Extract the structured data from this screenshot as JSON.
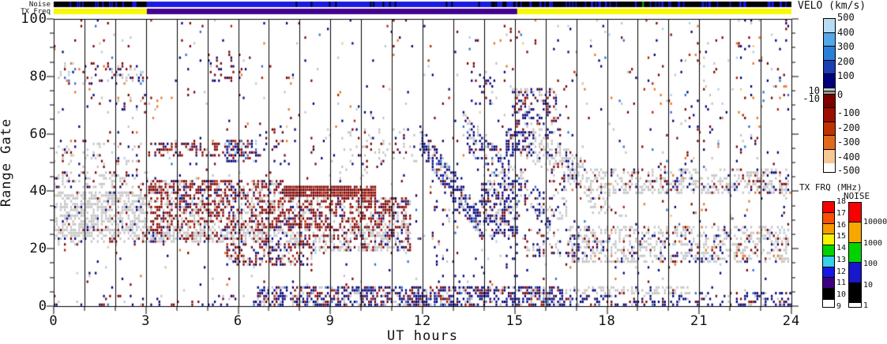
{
  "plot": {
    "x_axis": {
      "label": "UT hours",
      "tick_labels": [
        "0",
        "3",
        "6",
        "9",
        "12",
        "15",
        "18",
        "21",
        "24"
      ],
      "range_hours": [
        0,
        24
      ]
    },
    "y_axis": {
      "label": "Range Gate",
      "tick_labels": [
        "100",
        "80",
        "60",
        "40",
        "20",
        "0"
      ],
      "range_gates": [
        0,
        100
      ]
    }
  },
  "strips": {
    "noise": {
      "label": "Noise",
      "segments": [
        {
          "h0": 0,
          "h1": 3.03,
          "color": "#000000"
        },
        {
          "h0": 3.03,
          "h1": 15.08,
          "color": "#1a1ae0"
        },
        {
          "h0": 15.08,
          "h1": 24,
          "color": "#000000"
        }
      ],
      "mark_color_on_black": "#1a1ae0",
      "mark_color_on_blue": "#000000",
      "mark_counts": [
        14,
        14,
        46
      ],
      "green_mark": {
        "hour": 19.15,
        "color": "#00bb00"
      }
    },
    "tx_freq": {
      "label": "TX Freq",
      "segments": [
        {
          "h0": 0,
          "h1": 3.03,
          "color": "#f8f800"
        },
        {
          "h0": 3.03,
          "h1": 15.08,
          "color": "#42008e"
        },
        {
          "h0": 15.08,
          "h1": 24,
          "color": "#f8f800"
        }
      ]
    }
  },
  "colorbars": {
    "velo": {
      "title": "VELO (km/s)",
      "segments": [
        {
          "color": "#b8dcf4"
        },
        {
          "color": "#54a8e8"
        },
        {
          "color": "#2b7fd8"
        },
        {
          "color": "#1b3eb4"
        },
        {
          "color": "#00007d"
        },
        {
          "color": "#c6c6c6",
          "thin": true
        },
        {
          "color": "#969696",
          "thin": true
        },
        {
          "color": "#7d0000"
        },
        {
          "color": "#9e0e00"
        },
        {
          "color": "#bf3300"
        },
        {
          "color": "#e06a1a"
        },
        {
          "color": "#f6c894"
        }
      ],
      "right_tick_labels": [
        {
          "b": 0,
          "label": "500"
        },
        {
          "b": 1,
          "label": "400"
        },
        {
          "b": 2,
          "label": "300"
        },
        {
          "b": 3,
          "label": "200"
        },
        {
          "b": 4,
          "label": "100"
        },
        {
          "b": 6,
          "label": "0"
        },
        {
          "b": 8,
          "label": "-100"
        },
        {
          "b": 9,
          "label": "-200"
        },
        {
          "b": 10,
          "label": "-300"
        },
        {
          "b": 11,
          "label": "-400"
        },
        {
          "b": 12,
          "label": "-500"
        }
      ],
      "left_tick_labels": [
        {
          "b": 5,
          "label": "10"
        },
        {
          "b": 7,
          "label": "-10"
        }
      ]
    },
    "tx_frq": {
      "title": "TX FRQ (MHz)",
      "segment_colors": [
        "#f80000",
        "#f85200",
        "#f89b00",
        "#f8f400",
        "#00d400",
        "#37d2e8",
        "#1717e8",
        "#3c0080",
        "#000000"
      ],
      "tick_labels": [
        "18",
        "17",
        "16",
        "15",
        "14",
        "13",
        "12",
        "11",
        "10",
        "9"
      ]
    },
    "noise": {
      "title": "NOISE",
      "segment_colors": [
        "#f80000",
        "#f8a600",
        "#00d400",
        "#1717cc",
        "#000000"
      ],
      "tick_labels": [
        "10000",
        "1000",
        "100",
        "10",
        "1"
      ]
    }
  },
  "chart_data": {
    "type": "heatmap",
    "title": "",
    "xlabel": "UT hours",
    "ylabel": "Range Gate",
    "xlim": [
      0,
      24
    ],
    "ylim": [
      0,
      100
    ],
    "colorbar_title": "VELO (km/s)",
    "velocity_scale_km_s": [
      -500,
      500
    ],
    "hour_gridlines": true,
    "palette": {
      "navy": "#00007d",
      "maroon": "#7d0000",
      "red": "#b51e00",
      "gray": "#c3c3c3",
      "mblue": "#2e6fd0",
      "lblue": "#a8d2ee",
      "orange": "#e87722",
      "lorange": "#f4c391"
    },
    "background_speckle": {
      "density": 0.022,
      "weights": {
        "navy": 30,
        "maroon": 26,
        "gray": 16,
        "lblue": 8,
        "orange": 8,
        "mblue": 6,
        "red": 4,
        "lorange": 2
      }
    },
    "regions": [
      {
        "type": "rect",
        "h": [
          0.1,
          3.3
        ],
        "g": [
          77,
          85
        ],
        "d": 0.16,
        "w": {
          "maroon": 28,
          "gray": 26,
          "navy": 20,
          "orange": 8,
          "lblue": 9,
          "mblue": 9
        }
      },
      {
        "type": "rect",
        "h": [
          1.8,
          2.7
        ],
        "g": [
          78,
          84
        ],
        "d": 0.35,
        "w": {
          "gray": 50,
          "maroon": 25,
          "navy": 25
        }
      },
      {
        "type": "rect",
        "h": [
          1.2,
          3.4
        ],
        "g": [
          67,
          74
        ],
        "d": 0.1,
        "w": {
          "maroon": 40,
          "navy": 35,
          "gray": 15,
          "orange": 10
        }
      },
      {
        "type": "rect",
        "h": [
          0,
          3.05
        ],
        "g": [
          48,
          57
        ],
        "d": 0.16,
        "w": {
          "gray": 62,
          "maroon": 16,
          "navy": 14,
          "lblue": 8
        }
      },
      {
        "type": "rect",
        "h": [
          0,
          3.05
        ],
        "g": [
          41,
          47
        ],
        "d": 0.3,
        "w": {
          "gray": 65,
          "maroon": 20,
          "navy": 15
        }
      },
      {
        "type": "rect",
        "h": [
          0,
          3.05
        ],
        "g": [
          24,
          40
        ],
        "d": 0.62,
        "w": {
          "gray": 86,
          "maroon": 8,
          "navy": 6
        }
      },
      {
        "type": "rect",
        "h": [
          0,
          3.05
        ],
        "g": [
          21,
          25
        ],
        "d": 0.28,
        "w": {
          "gray": 75,
          "maroon": 13,
          "navy": 12
        }
      },
      {
        "type": "rect",
        "h": [
          3.05,
          7.5
        ],
        "g": [
          22,
          44
        ],
        "d": 0.56,
        "w": {
          "maroon": 50,
          "gray": 33,
          "navy": 9,
          "red": 8
        }
      },
      {
        "type": "rect",
        "h": [
          2.9,
          8.0
        ],
        "g": [
          22,
          27
        ],
        "d": 0.63,
        "w": {
          "gray": 58,
          "maroon": 30,
          "navy": 12
        }
      },
      {
        "type": "rect",
        "h": [
          3.1,
          5.8
        ],
        "g": [
          52,
          57.5
        ],
        "d": 0.42,
        "w": {
          "maroon": 62,
          "gray": 16,
          "navy": 16,
          "red": 6
        }
      },
      {
        "type": "rect",
        "h": [
          5.6,
          6.6
        ],
        "g": [
          50,
          58.5
        ],
        "d": 0.52,
        "w": {
          "navy": 42,
          "mblue": 18,
          "maroon": 22,
          "lblue": 10,
          "red": 8
        }
      },
      {
        "type": "rect",
        "h": [
          5.0,
          6.3
        ],
        "g": [
          78,
          88
        ],
        "d": 0.2,
        "w": {
          "maroon": 42,
          "navy": 34,
          "orange": 10,
          "gray": 14
        }
      },
      {
        "type": "rect",
        "h": [
          5.6,
          8.45
        ],
        "g": [
          14,
          22
        ],
        "d": 0.45,
        "w": {
          "maroon": 45,
          "navy": 25,
          "gray": 22,
          "red": 8
        }
      },
      {
        "type": "rect",
        "h": [
          7.3,
          11.6
        ],
        "g": [
          22,
          38
        ],
        "d": 0.56,
        "w": {
          "maroon": 55,
          "gray": 28,
          "navy": 10,
          "red": 7
        }
      },
      {
        "type": "rect",
        "h": [
          7.5,
          10.5
        ],
        "g": [
          38,
          42.5
        ],
        "d": 0.93,
        "w": {
          "maroon": 88,
          "red": 12
        }
      },
      {
        "type": "rect",
        "h": [
          8.4,
          11.6
        ],
        "g": [
          19,
          26
        ],
        "d": 0.58,
        "w": {
          "gray": 60,
          "maroon": 27,
          "navy": 13
        }
      },
      {
        "type": "rect",
        "h": [
          6.6,
          16.6
        ],
        "g": [
          0,
          7.5
        ],
        "d": 0.6,
        "w": {
          "navy": 54,
          "gray": 19,
          "maroon": 20,
          "mblue": 4,
          "red": 3
        }
      },
      {
        "type": "rect",
        "h": [
          16.6,
          24
        ],
        "g": [
          0,
          5
        ],
        "d": 0.26,
        "w": {
          "navy": 62,
          "maroon": 18,
          "gray": 15,
          "mblue": 5
        }
      },
      {
        "type": "rect",
        "h": [
          22.4,
          24
        ],
        "g": [
          0,
          3.5
        ],
        "d": 0.42,
        "w": {
          "navy": 68,
          "maroon": 16,
          "gray": 16
        }
      },
      {
        "type": "rect",
        "h": [
          0,
          6.6
        ],
        "g": [
          0,
          4.5
        ],
        "d": 0.13,
        "w": {
          "navy": 44,
          "maroon": 28,
          "gray": 12,
          "lblue": 9,
          "mblue": 7
        }
      },
      {
        "type": "diag",
        "h0": 11.9,
        "g0": 58,
        "h1": 14.0,
        "g1": 27,
        "th": 10,
        "d": 0.55,
        "w": {
          "navy": 60,
          "gray": 24,
          "maroon": 10,
          "mblue": 6
        }
      },
      {
        "type": "diag",
        "h0": 13.3,
        "g0": 62,
        "h1": 16.2,
        "g1": 31,
        "th": 12,
        "d": 0.4,
        "w": {
          "navy": 48,
          "gray": 34,
          "maroon": 12,
          "mblue": 6
        }
      },
      {
        "type": "rect",
        "h": [
          13.9,
          15.1
        ],
        "g": [
          24,
          44
        ],
        "d": 0.5,
        "w": {
          "navy": 58,
          "gray": 30,
          "maroon": 12
        }
      },
      {
        "type": "rect",
        "h": [
          9.5,
          11.9
        ],
        "g": [
          50,
          62
        ],
        "d": 0.14,
        "w": {
          "gray": 55,
          "maroon": 23,
          "navy": 22
        }
      },
      {
        "type": "rect",
        "h": [
          13.6,
          14.4
        ],
        "g": [
          70,
          82
        ],
        "d": 0.18,
        "w": {
          "navy": 70,
          "gray": 15,
          "maroon": 15
        }
      },
      {
        "type": "rect",
        "h": [
          14.9,
          16.4
        ],
        "g": [
          63,
          76
        ],
        "d": 0.4,
        "w": {
          "navy": 45,
          "gray": 25,
          "maroon": 25,
          "red": 5
        }
      },
      {
        "type": "rect",
        "h": [
          14.7,
          15.6
        ],
        "g": [
          52,
          62
        ],
        "d": 0.55,
        "w": {
          "navy": 70,
          "maroon": 14,
          "gray": 16
        }
      },
      {
        "type": "rect",
        "h": [
          15.6,
          16.5
        ],
        "g": [
          50,
          62
        ],
        "d": 0.3,
        "w": {
          "maroon": 42,
          "navy": 36,
          "gray": 22
        }
      },
      {
        "type": "diag",
        "h0": 15.3,
        "g0": 58,
        "h1": 17.4,
        "g1": 44,
        "th": 12,
        "d": 0.48,
        "w": {
          "gray": 72,
          "maroon": 13,
          "navy": 15
        }
      },
      {
        "type": "rect",
        "h": [
          17.4,
          24
        ],
        "g": [
          39,
          48
        ],
        "d": 0.4,
        "w": {
          "gray": 74,
          "maroon": 12,
          "navy": 10,
          "orange": 2,
          "lblue": 2
        }
      },
      {
        "type": "rect",
        "h": [
          17.4,
          18.1
        ],
        "g": [
          32,
          40
        ],
        "d": 0.28,
        "w": {
          "gray": 78,
          "navy": 11,
          "maroon": 11
        }
      },
      {
        "type": "rect",
        "h": [
          16.8,
          23.9
        ],
        "g": [
          15,
          28
        ],
        "d": 0.42,
        "w": {
          "gray": 70,
          "maroon": 12,
          "navy": 12,
          "orange": 3,
          "lblue": 3
        }
      },
      {
        "type": "rect",
        "h": [
          15.3,
          16.8
        ],
        "g": [
          17,
          27
        ],
        "d": 0.3,
        "w": {
          "navy": 40,
          "maroon": 27,
          "gray": 33
        }
      },
      {
        "type": "rect",
        "h": [
          16.4,
          20.7
        ],
        "g": [
          4.5,
          7
        ],
        "d": 0.42,
        "w": {
          "gray": 84,
          "navy": 8,
          "maroon": 8
        }
      },
      {
        "type": "rect",
        "h": [
          12.2,
          15.1
        ],
        "g": [
          8,
          50
        ],
        "d": 0.07,
        "w": {
          "navy": 55,
          "gray": 15,
          "maroon": 15,
          "mblue": 5,
          "orange": 5,
          "lblue": 5
        }
      },
      {
        "type": "rect",
        "h": [
          20,
          24
        ],
        "g": [
          30,
          100
        ],
        "d": 0.05,
        "w": {
          "navy": 24,
          "maroon": 22,
          "gray": 14,
          "orange": 12,
          "lblue": 12,
          "mblue": 8,
          "red": 4,
          "lorange": 4
        }
      },
      {
        "type": "rect",
        "h": [
          6.3,
          7.6
        ],
        "g": [
          52,
          62
        ],
        "d": 0.14,
        "w": {
          "maroon": 52,
          "navy": 26,
          "orange": 10,
          "gray": 12
        }
      },
      {
        "type": "rect",
        "h": [
          8.4,
          10.6
        ],
        "g": [
          43,
          62
        ],
        "d": 0.06,
        "w": {
          "gray": 40,
          "maroon": 30,
          "navy": 30
        }
      },
      {
        "type": "rect",
        "h": [
          16.2,
          16.8
        ],
        "g": [
          30,
          55
        ],
        "d": 0.26,
        "w": {
          "gray": 66,
          "maroon": 17,
          "navy": 17
        }
      }
    ]
  }
}
